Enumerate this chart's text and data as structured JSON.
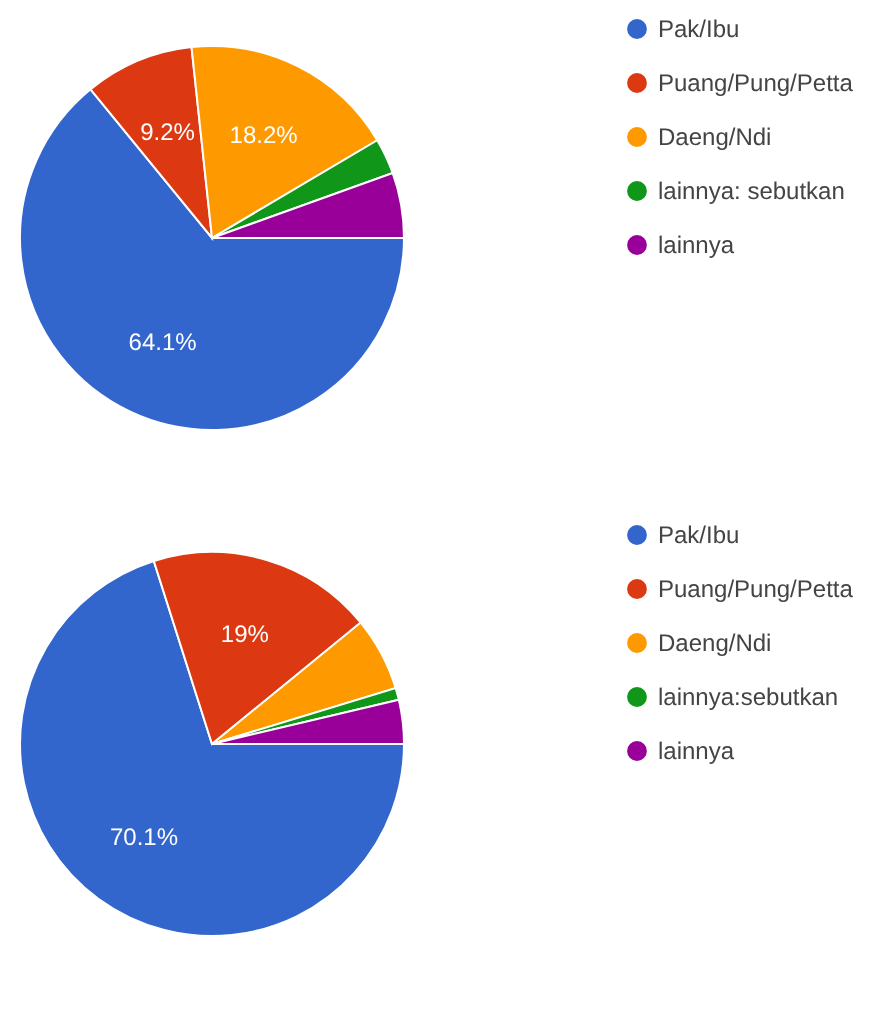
{
  "chart_data": [
    {
      "type": "pie",
      "categories": [
        "Pak/Ibu",
        "Puang/Pung/Petta",
        "Daeng/Ndi",
        "lainnya: sebutkan",
        "lainnya"
      ],
      "values": [
        64.1,
        9.2,
        18.2,
        3.0,
        5.5
      ],
      "colors": [
        "#3366cc",
        "#dc3912",
        "#ff9900",
        "#109618",
        "#990099"
      ],
      "value_labels": [
        "64.1%",
        "9.2%",
        "18.2%",
        null,
        null
      ],
      "legend": "right"
    },
    {
      "type": "pie",
      "categories": [
        "Pak/Ibu",
        "Puang/Pung/Petta",
        "Daeng/Ndi",
        "lainnya:sebutkan",
        "lainnya"
      ],
      "values": [
        70.1,
        19,
        6.2,
        1.0,
        3.7
      ],
      "colors": [
        "#3366cc",
        "#dc3912",
        "#ff9900",
        "#109618",
        "#990099"
      ],
      "value_labels": [
        "70.1%",
        "19%",
        null,
        null,
        null
      ],
      "legend": "right"
    }
  ]
}
